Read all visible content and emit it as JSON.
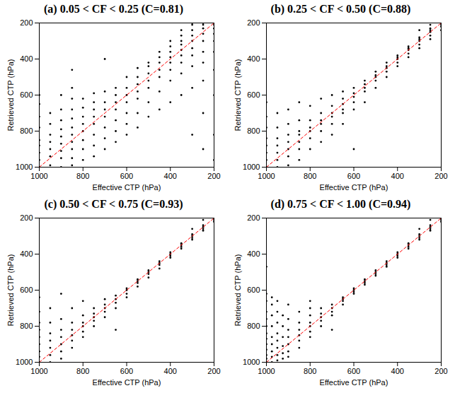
{
  "chart_data": [
    {
      "type": "scatter",
      "title": "(a) 0.05 < CF < 0.25 (C=0.81)",
      "x_label": "Effective CTP (hPa)",
      "y_label": "Retrieved CTP (hPa)",
      "color": "#000000",
      "marker": "dot",
      "xlim": [
        1000,
        200
      ],
      "ylim": [
        1000,
        200
      ],
      "xticks": [
        1000,
        800,
        600,
        400,
        200
      ],
      "yticks": [
        1000,
        800,
        600,
        400,
        200
      ],
      "reference_line": {
        "x": [
          1000,
          200
        ],
        "y": [
          1000,
          200
        ],
        "color": "#ff0000",
        "line_style": "dashed"
      },
      "x": [
        1000,
        1000,
        1000,
        1000,
        1000,
        1000,
        1000,
        1000,
        1000,
        950,
        950,
        950,
        950,
        950,
        950,
        950,
        900,
        900,
        900,
        900,
        900,
        900,
        900,
        900,
        900,
        850,
        850,
        850,
        850,
        850,
        850,
        850,
        850,
        850,
        850,
        850,
        800,
        800,
        800,
        800,
        800,
        800,
        800,
        800,
        750,
        750,
        750,
        750,
        750,
        750,
        750,
        750,
        700,
        700,
        700,
        700,
        700,
        700,
        700,
        700,
        650,
        650,
        650,
        650,
        650,
        650,
        650,
        600,
        600,
        600,
        600,
        600,
        600,
        600,
        550,
        550,
        550,
        550,
        550,
        550,
        550,
        500,
        500,
        500,
        500,
        500,
        500,
        500,
        450,
        450,
        450,
        450,
        450,
        450,
        450,
        400,
        400,
        400,
        400,
        400,
        400,
        400,
        400,
        350,
        350,
        350,
        350,
        350,
        350,
        350,
        350,
        350,
        300,
        300,
        300,
        300,
        300,
        300,
        300,
        300,
        300,
        300,
        250,
        250,
        250,
        250,
        250,
        250,
        250,
        250,
        250,
        250,
        200,
        200,
        200,
        200,
        200,
        200,
        200,
        200,
        200,
        200
      ],
      "y": [
        1000,
        960,
        920,
        880,
        850,
        780,
        720,
        650,
        600,
        990,
        940,
        900,
        860,
        820,
        760,
        700,
        1000,
        950,
        910,
        870,
        830,
        790,
        740,
        680,
        600,
        990,
        950,
        900,
        860,
        820,
        780,
        730,
        680,
        620,
        560,
        460,
        960,
        900,
        850,
        800,
        760,
        720,
        670,
        620,
        940,
        880,
        820,
        760,
        720,
        680,
        640,
        590,
        900,
        840,
        780,
        720,
        680,
        640,
        580,
        400,
        860,
        800,
        740,
        680,
        640,
        600,
        560,
        820,
        760,
        700,
        640,
        600,
        560,
        500,
        780,
        700,
        620,
        580,
        540,
        500,
        450,
        720,
        640,
        560,
        520,
        480,
        440,
        420,
        680,
        580,
        500,
        460,
        420,
        390,
        360,
        640,
        520,
        460,
        420,
        390,
        360,
        330,
        300,
        600,
        480,
        420,
        380,
        350,
        320,
        300,
        270,
        240,
        820,
        560,
        440,
        380,
        340,
        300,
        270,
        240,
        210,
        200,
        900,
        700,
        520,
        420,
        360,
        300,
        260,
        230,
        210,
        200,
        960,
        820,
        600,
        460,
        360,
        300,
        260,
        230,
        210,
        200
      ]
    },
    {
      "type": "scatter",
      "title": "(b) 0.25 < CF < 0.50 (C=0.88)",
      "x_label": "Effective CTP (hPa)",
      "y_label": "Retrieved CTP (hPa)",
      "color": "#000000",
      "marker": "dot",
      "xlim": [
        1000,
        200
      ],
      "ylim": [
        1000,
        200
      ],
      "xticks": [
        1000,
        800,
        600,
        400,
        200
      ],
      "yticks": [
        1000,
        800,
        600,
        400,
        200
      ],
      "reference_line": {
        "x": [
          1000,
          200
        ],
        "y": [
          1000,
          200
        ],
        "color": "#ff0000",
        "line_style": "dashed"
      },
      "x": [
        1000,
        1000,
        1000,
        1000,
        1000,
        1000,
        1000,
        1000,
        950,
        950,
        950,
        950,
        950,
        950,
        950,
        900,
        900,
        900,
        900,
        900,
        900,
        900,
        850,
        850,
        850,
        850,
        850,
        850,
        850,
        800,
        800,
        800,
        800,
        800,
        800,
        750,
        750,
        750,
        750,
        750,
        750,
        700,
        700,
        700,
        700,
        700,
        700,
        650,
        650,
        650,
        650,
        650,
        650,
        600,
        600,
        600,
        600,
        600,
        600,
        550,
        550,
        550,
        550,
        550,
        500,
        500,
        500,
        500,
        500,
        450,
        450,
        450,
        450,
        450,
        400,
        400,
        400,
        400,
        400,
        350,
        350,
        350,
        350,
        350,
        300,
        300,
        300,
        300,
        300,
        300,
        250,
        250,
        250,
        250,
        250,
        250,
        200,
        200,
        200,
        200,
        200
      ],
      "y": [
        1000,
        960,
        920,
        880,
        840,
        780,
        720,
        640,
        1000,
        960,
        920,
        880,
        840,
        780,
        700,
        990,
        940,
        900,
        860,
        820,
        760,
        680,
        960,
        900,
        860,
        820,
        800,
        740,
        640,
        900,
        840,
        800,
        780,
        740,
        660,
        860,
        800,
        760,
        740,
        700,
        620,
        820,
        760,
        720,
        700,
        660,
        600,
        760,
        700,
        680,
        650,
        620,
        580,
        900,
        680,
        640,
        610,
        590,
        560,
        640,
        580,
        560,
        540,
        520,
        560,
        520,
        500,
        490,
        470,
        500,
        470,
        450,
        440,
        420,
        440,
        420,
        400,
        390,
        380,
        390,
        370,
        350,
        340,
        330,
        340,
        320,
        300,
        290,
        280,
        240,
        290,
        270,
        250,
        240,
        230,
        210,
        240,
        220,
        210,
        200,
        200
      ]
    },
    {
      "type": "scatter",
      "title": "(c) 0.50 < CF < 0.75 (C=0.93)",
      "x_label": "Effective CTP (hPa)",
      "y_label": "Retrieved CTP (hPa)",
      "color": "#000000",
      "marker": "dot",
      "xlim": [
        1000,
        200
      ],
      "ylim": [
        1000,
        200
      ],
      "xticks": [
        1000,
        800,
        600,
        400,
        200
      ],
      "yticks": [
        1000,
        800,
        600,
        400,
        200
      ],
      "reference_line": {
        "x": [
          1000,
          200
        ],
        "y": [
          1000,
          200
        ],
        "color": "#ff0000",
        "line_style": "dashed"
      },
      "x": [
        1000,
        1000,
        1000,
        1000,
        1000,
        1000,
        1000,
        1000,
        1000,
        950,
        950,
        950,
        950,
        950,
        950,
        950,
        900,
        900,
        900,
        900,
        900,
        900,
        900,
        850,
        850,
        850,
        850,
        850,
        850,
        800,
        800,
        800,
        800,
        800,
        800,
        750,
        750,
        750,
        750,
        750,
        700,
        700,
        700,
        700,
        700,
        650,
        650,
        650,
        650,
        650,
        600,
        600,
        600,
        600,
        550,
        550,
        550,
        550,
        500,
        500,
        500,
        500,
        450,
        450,
        450,
        450,
        400,
        400,
        400,
        400,
        350,
        350,
        350,
        350,
        300,
        300,
        300,
        300,
        300,
        250,
        250,
        250,
        250,
        250,
        200,
        200,
        200,
        200
      ],
      "y": [
        1000,
        970,
        940,
        900,
        860,
        820,
        780,
        720,
        640,
        1000,
        960,
        920,
        880,
        840,
        780,
        700,
        980,
        940,
        900,
        860,
        820,
        760,
        620,
        920,
        880,
        850,
        820,
        780,
        700,
        860,
        830,
        800,
        780,
        740,
        660,
        800,
        770,
        750,
        730,
        700,
        750,
        720,
        700,
        680,
        650,
        700,
        670,
        650,
        630,
        820,
        640,
        620,
        600,
        590,
        580,
        560,
        550,
        540,
        530,
        510,
        500,
        490,
        480,
        460,
        450,
        440,
        420,
        410,
        400,
        390,
        370,
        360,
        350,
        340,
        320,
        310,
        300,
        290,
        260,
        270,
        260,
        250,
        240,
        210,
        220,
        210,
        200,
        200
      ]
    },
    {
      "type": "scatter",
      "title": "(d) 0.75 < CF < 1.00 (C=0.94)",
      "x_label": "Effective CTP (hPa)",
      "y_label": "Retrieved CTP (hPa)",
      "color": "#000000",
      "marker": "dot",
      "xlim": [
        1000,
        200
      ],
      "ylim": [
        1000,
        200
      ],
      "xticks": [
        1000,
        800,
        600,
        400,
        200
      ],
      "yticks": [
        1000,
        800,
        600,
        400,
        200
      ],
      "reference_line": {
        "x": [
          1000,
          200
        ],
        "y": [
          1000,
          200
        ],
        "color": "#ff0000",
        "line_style": "dashed"
      },
      "x": [
        1000,
        1000,
        1000,
        1000,
        1000,
        1000,
        1000,
        1000,
        1000,
        1000,
        1000,
        1000,
        1000,
        975,
        975,
        975,
        975,
        975,
        975,
        975,
        975,
        975,
        950,
        950,
        950,
        950,
        950,
        950,
        950,
        950,
        925,
        925,
        925,
        925,
        925,
        925,
        900,
        900,
        900,
        900,
        900,
        900,
        900,
        850,
        850,
        850,
        850,
        850,
        850,
        800,
        800,
        800,
        800,
        800,
        800,
        800,
        750,
        750,
        750,
        750,
        750,
        700,
        700,
        700,
        700,
        700,
        650,
        650,
        650,
        650,
        600,
        600,
        600,
        600,
        550,
        550,
        550,
        550,
        500,
        500,
        500,
        500,
        450,
        450,
        450,
        450,
        400,
        400,
        400,
        400,
        350,
        350,
        350,
        350,
        300,
        300,
        300,
        300,
        300,
        250,
        250,
        250,
        250,
        250,
        200,
        200,
        200,
        200
      ],
      "y": [
        1000,
        980,
        960,
        930,
        900,
        870,
        840,
        800,
        760,
        720,
        660,
        620,
        470,
        1000,
        970,
        940,
        900,
        860,
        800,
        740,
        680,
        640,
        990,
        960,
        920,
        880,
        840,
        780,
        720,
        660,
        980,
        950,
        910,
        860,
        800,
        740,
        970,
        940,
        900,
        860,
        820,
        760,
        680,
        920,
        880,
        850,
        820,
        780,
        720,
        860,
        830,
        800,
        780,
        740,
        700,
        660,
        800,
        770,
        750,
        730,
        700,
        740,
        720,
        700,
        680,
        820,
        680,
        660,
        650,
        640,
        620,
        610,
        600,
        590,
        570,
        560,
        550,
        540,
        520,
        510,
        500,
        490,
        470,
        460,
        450,
        440,
        420,
        410,
        400,
        390,
        370,
        360,
        350,
        340,
        320,
        310,
        300,
        290,
        260,
        270,
        260,
        250,
        240,
        210,
        220,
        210,
        200,
        200
      ]
    }
  ]
}
